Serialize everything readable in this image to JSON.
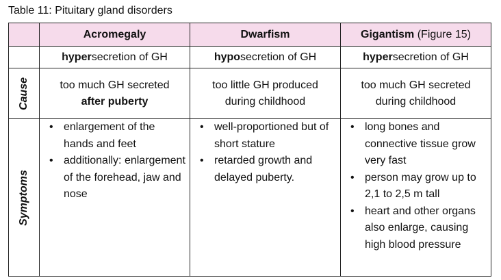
{
  "caption": "Table 11: Pituitary gland disorders",
  "columns": [
    {
      "name": "Acromegaly",
      "name_extra": "",
      "secretion_prefix": "hyper",
      "secretion_suffix": "secretion of GH",
      "cause_line1": "too much GH secreted",
      "cause_line2": "after puberty",
      "symptoms": [
        "enlargement of the hands and feet",
        "additionally: enlargement of the forehead, jaw and nose"
      ]
    },
    {
      "name": "Dwarfism",
      "name_extra": "",
      "secretion_prefix": "hypo",
      "secretion_suffix": "secretion of GH",
      "cause_line1": "too little GH produced",
      "cause_line2": "during childhood",
      "symptoms": [
        "well-proportioned but of short stature",
        "retarded growth and delayed puberty."
      ]
    },
    {
      "name": "Gigantism",
      "name_extra": " (Figure 15)",
      "secretion_prefix": "hyper",
      "secretion_suffix": "secretion of GH",
      "cause_line1": "too much GH secreted",
      "cause_line2": "during childhood",
      "symptoms": [
        "long bones and connective tissue grow very fast",
        "person may grow up to 2,1 to 2,5 m tall",
        "heart and other organs also enlarge, causing high blood pressure"
      ]
    }
  ],
  "row_labels": {
    "cause": "Cause",
    "symptoms": "Symptoms"
  },
  "colors": {
    "header_background": "#f6dbeb",
    "border": "#222222"
  }
}
